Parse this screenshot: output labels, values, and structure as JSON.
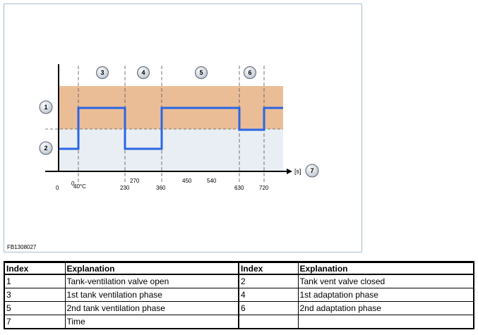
{
  "figure": {
    "code": "FB1308027",
    "colors": {
      "open_band": "#ebbd96",
      "closed_band": "#e8eef3",
      "signal": "#2a66e6",
      "badge_fill": "#d6dce4"
    }
  },
  "chart_data": {
    "type": "line",
    "xlabel": "[s]",
    "x_ticks_bottom": [
      "0",
      "40°C",
      "230",
      "360",
      "630",
      "720"
    ],
    "x_ticks_top": [
      "0",
      "270",
      "450",
      "540"
    ],
    "x_axis_badge": "7",
    "y_badges": [
      {
        "label": "1",
        "state": "open"
      },
      {
        "label": "2",
        "state": "closed"
      }
    ],
    "phases": [
      {
        "label": "3",
        "start": "40°C",
        "end": "230"
      },
      {
        "label": "4",
        "start": "230",
        "end": "360"
      },
      {
        "label": "5",
        "start": "360",
        "end": "630"
      },
      {
        "label": "6",
        "start": "630",
        "end": "720"
      }
    ],
    "valve_signal": [
      {
        "state": "closed",
        "from": "0",
        "to": "40°C"
      },
      {
        "state": "open",
        "from": "40°C",
        "to": "230"
      },
      {
        "state": "closed",
        "from": "230",
        "to": "360"
      },
      {
        "state": "open",
        "from": "360",
        "to": "630"
      },
      {
        "state": "intermediate",
        "from": "630",
        "to": "720"
      },
      {
        "state": "open",
        "from": "720",
        "to": "end"
      }
    ]
  },
  "table": {
    "headers": [
      "Index",
      "Explanation",
      "Index",
      "Explanation"
    ],
    "rows": [
      [
        "1",
        "Tank-ventilation valve open",
        "2",
        "Tank vent valve closed"
      ],
      [
        "3",
        "1st tank ventilation phase",
        "4",
        "1st adaptation phase"
      ],
      [
        "5",
        "2nd tank ventilation phase",
        "6",
        "2nd adaptation phase"
      ],
      [
        "7",
        "Time",
        "",
        ""
      ]
    ]
  }
}
